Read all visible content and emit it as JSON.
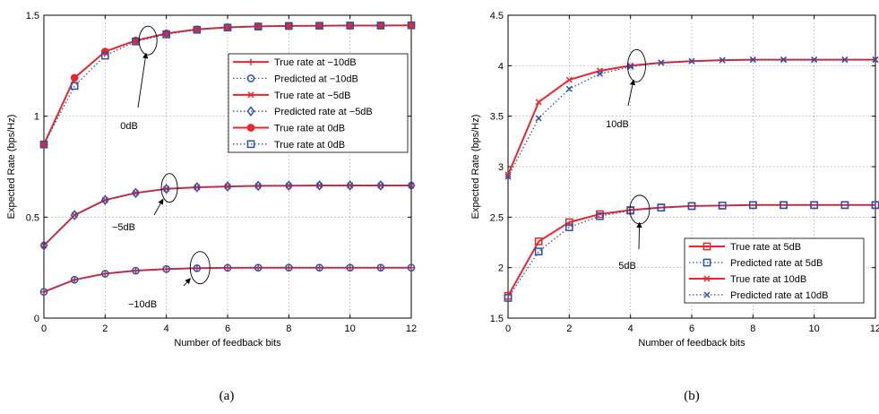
{
  "chart_data": [
    {
      "type": "line",
      "caption": "(a)",
      "xlabel": "Number of feedback bits",
      "ylabel": "Expected Rate (bps/Hz)",
      "xlim": [
        0,
        12
      ],
      "ylim": [
        0,
        1.5
      ],
      "xticks": [
        "0",
        "2",
        "4",
        "6",
        "8",
        "10",
        "12"
      ],
      "yticks": [
        "0",
        "0.5",
        "1",
        "1.5"
      ],
      "grid": true,
      "legend_position": "top-right",
      "x": [
        0,
        1,
        2,
        3,
        4,
        5,
        6,
        7,
        8,
        9,
        10,
        11,
        12
      ],
      "series": [
        {
          "name": "True rate at −10dB",
          "marker": "plus",
          "style": "solid",
          "color": "#e8262b",
          "values": [
            0.13,
            0.19,
            0.22,
            0.235,
            0.243,
            0.247,
            0.249,
            0.25,
            0.25,
            0.25,
            0.25,
            0.25,
            0.25
          ]
        },
        {
          "name": "Predicted at −10dB",
          "marker": "circle",
          "style": "dotted",
          "color": "#3050a8",
          "values": [
            0.13,
            0.19,
            0.22,
            0.235,
            0.243,
            0.247,
            0.249,
            0.25,
            0.25,
            0.25,
            0.25,
            0.25,
            0.25
          ]
        },
        {
          "name": "True rate at −5dB",
          "marker": "x",
          "style": "solid",
          "color": "#e8262b",
          "values": [
            0.36,
            0.51,
            0.585,
            0.62,
            0.64,
            0.648,
            0.652,
            0.655,
            0.656,
            0.657,
            0.657,
            0.657,
            0.657
          ]
        },
        {
          "name": "Predicted rate at −5dB",
          "marker": "diamond",
          "style": "dotted",
          "color": "#3050a8",
          "values": [
            0.36,
            0.51,
            0.585,
            0.62,
            0.64,
            0.648,
            0.652,
            0.655,
            0.656,
            0.657,
            0.657,
            0.657,
            0.657
          ]
        },
        {
          "name": "True rate at 0dB",
          "marker": "dot",
          "style": "solid",
          "color": "#e8262b",
          "values": [
            0.86,
            1.19,
            1.32,
            1.375,
            1.41,
            1.43,
            1.44,
            1.445,
            1.447,
            1.448,
            1.449,
            1.449,
            1.45
          ]
        },
        {
          "name": "True rate at 0dB",
          "marker": "square",
          "style": "dotted",
          "color": "#3050a8",
          "values": [
            0.86,
            1.15,
            1.3,
            1.37,
            1.405,
            1.428,
            1.439,
            1.444,
            1.447,
            1.448,
            1.449,
            1.449,
            1.45
          ]
        }
      ],
      "annotations": [
        {
          "text": "0dB",
          "x": 3.4,
          "y": 1.375
        },
        {
          "text": "−5dB",
          "x": 4.1,
          "y": 0.645
        },
        {
          "text": "−10dB",
          "x": 5.1,
          "y": 0.25
        }
      ]
    },
    {
      "type": "line",
      "caption": "(b)",
      "xlabel": "Number of feedback bits",
      "ylabel": "Expected Rate (bps/Hz)",
      "xlim": [
        0,
        12
      ],
      "ylim": [
        1.5,
        4.5
      ],
      "xticks": [
        "0",
        "2",
        "4",
        "6",
        "8",
        "10",
        "12"
      ],
      "yticks": [
        "1.5",
        "2",
        "2.5",
        "3",
        "3.5",
        "4",
        "4.5"
      ],
      "grid": true,
      "legend_position": "bottom-right",
      "x": [
        0,
        1,
        2,
        3,
        4,
        5,
        6,
        7,
        8,
        9,
        10,
        11,
        12
      ],
      "series": [
        {
          "name": "True rate at 5dB",
          "marker": "square",
          "style": "solid",
          "color": "#e8262b",
          "values": [
            1.72,
            2.26,
            2.45,
            2.53,
            2.57,
            2.595,
            2.61,
            2.615,
            2.62,
            2.62,
            2.62,
            2.62,
            2.62
          ]
        },
        {
          "name": "Predicted rate at 5dB",
          "marker": "square",
          "style": "dotted",
          "color": "#3050a8",
          "values": [
            1.7,
            2.16,
            2.4,
            2.51,
            2.565,
            2.595,
            2.61,
            2.615,
            2.62,
            2.62,
            2.62,
            2.62,
            2.62
          ]
        },
        {
          "name": "True rate at 10dB",
          "marker": "x",
          "style": "solid",
          "color": "#e8262b",
          "values": [
            2.92,
            3.64,
            3.86,
            3.95,
            4.0,
            4.03,
            4.045,
            4.055,
            4.06,
            4.06,
            4.06,
            4.06,
            4.06
          ]
        },
        {
          "name": "Predicted rate at 10dB",
          "marker": "x",
          "style": "dotted",
          "color": "#3050a8",
          "values": [
            2.9,
            3.48,
            3.77,
            3.92,
            3.99,
            4.03,
            4.045,
            4.055,
            4.06,
            4.06,
            4.06,
            4.06,
            4.06
          ]
        }
      ],
      "annotations": [
        {
          "text": "10dB",
          "x": 4.2,
          "y": 4.0
        },
        {
          "text": "5dB",
          "x": 4.3,
          "y": 2.575
        }
      ]
    }
  ]
}
